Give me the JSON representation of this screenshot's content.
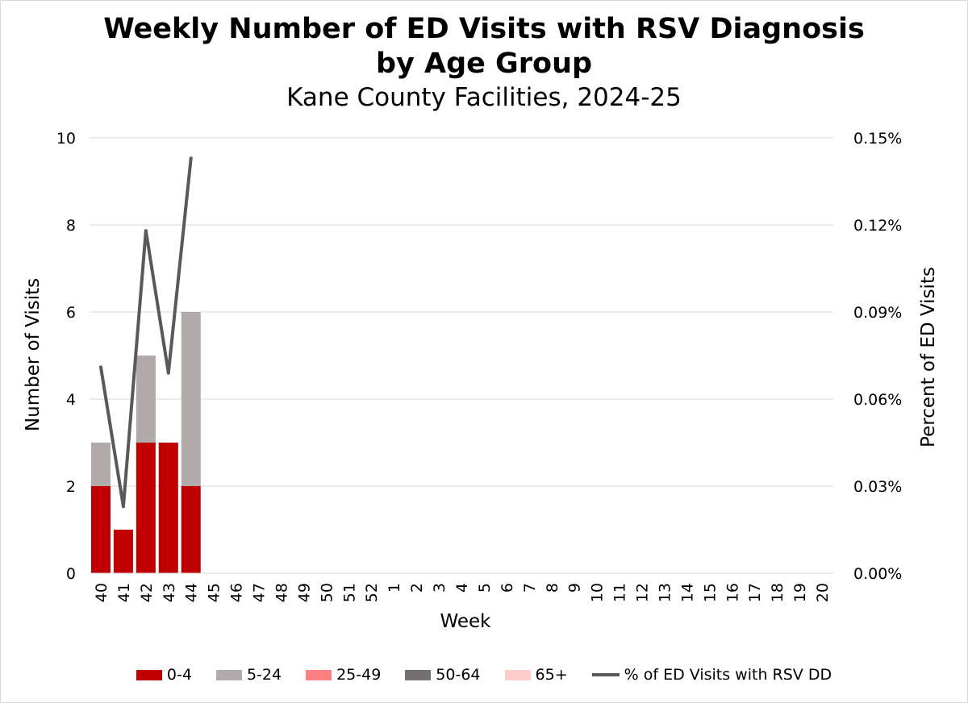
{
  "chart_data": {
    "type": "bar",
    "stacked": true,
    "title": "Weekly Number of ED Visits with RSV Diagnosis",
    "title_line2": "by Age Group",
    "subtitle": "Kane County Facilities, 2024-25",
    "xlabel": "Week",
    "ylabel": "Number of Visits",
    "y2label": "Percent of ED Visits",
    "ylim": [
      0,
      10
    ],
    "yticks": [
      "0",
      "2",
      "4",
      "6",
      "8",
      "10"
    ],
    "y2lim": [
      0,
      0.15
    ],
    "y2ticks": [
      "0.00%",
      "0.03%",
      "0.06%",
      "0.09%",
      "0.12%",
      "0.15%"
    ],
    "grid": true,
    "legend_position": "bottom",
    "categories": [
      "40",
      "41",
      "42",
      "43",
      "44",
      "45",
      "46",
      "47",
      "48",
      "49",
      "50",
      "51",
      "52",
      "1",
      "2",
      "3",
      "4",
      "5",
      "6",
      "7",
      "8",
      "9",
      "10",
      "11",
      "12",
      "13",
      "14",
      "15",
      "16",
      "17",
      "18",
      "19",
      "20"
    ],
    "series": [
      {
        "name": "0-4",
        "color": "#c00000",
        "values": [
          2,
          1,
          3,
          3,
          2,
          null,
          null,
          null,
          null,
          null,
          null,
          null,
          null,
          null,
          null,
          null,
          null,
          null,
          null,
          null,
          null,
          null,
          null,
          null,
          null,
          null,
          null,
          null,
          null,
          null,
          null,
          null,
          null
        ]
      },
      {
        "name": "5-24",
        "color": "#b0aaaa",
        "values": [
          1,
          0,
          2,
          0,
          4,
          null,
          null,
          null,
          null,
          null,
          null,
          null,
          null,
          null,
          null,
          null,
          null,
          null,
          null,
          null,
          null,
          null,
          null,
          null,
          null,
          null,
          null,
          null,
          null,
          null,
          null,
          null,
          null
        ]
      },
      {
        "name": "25-49",
        "color": "#ff8080",
        "values": [
          0,
          0,
          0,
          0,
          0,
          null,
          null,
          null,
          null,
          null,
          null,
          null,
          null,
          null,
          null,
          null,
          null,
          null,
          null,
          null,
          null,
          null,
          null,
          null,
          null,
          null,
          null,
          null,
          null,
          null,
          null,
          null,
          null
        ]
      },
      {
        "name": "50-64",
        "color": "#767171",
        "values": [
          0,
          0,
          0,
          0,
          0,
          null,
          null,
          null,
          null,
          null,
          null,
          null,
          null,
          null,
          null,
          null,
          null,
          null,
          null,
          null,
          null,
          null,
          null,
          null,
          null,
          null,
          null,
          null,
          null,
          null,
          null,
          null,
          null
        ]
      },
      {
        "name": "65+",
        "color": "#ffcccc",
        "values": [
          0,
          0,
          0,
          0,
          0,
          null,
          null,
          null,
          null,
          null,
          null,
          null,
          null,
          null,
          null,
          null,
          null,
          null,
          null,
          null,
          null,
          null,
          null,
          null,
          null,
          null,
          null,
          null,
          null,
          null,
          null,
          null,
          null
        ]
      }
    ],
    "line_series": {
      "name": "% of ED Visits with RSV DD",
      "color": "#595959",
      "axis": "secondary",
      "values": [
        0.071,
        0.023,
        0.118,
        0.069,
        0.143
      ]
    }
  }
}
